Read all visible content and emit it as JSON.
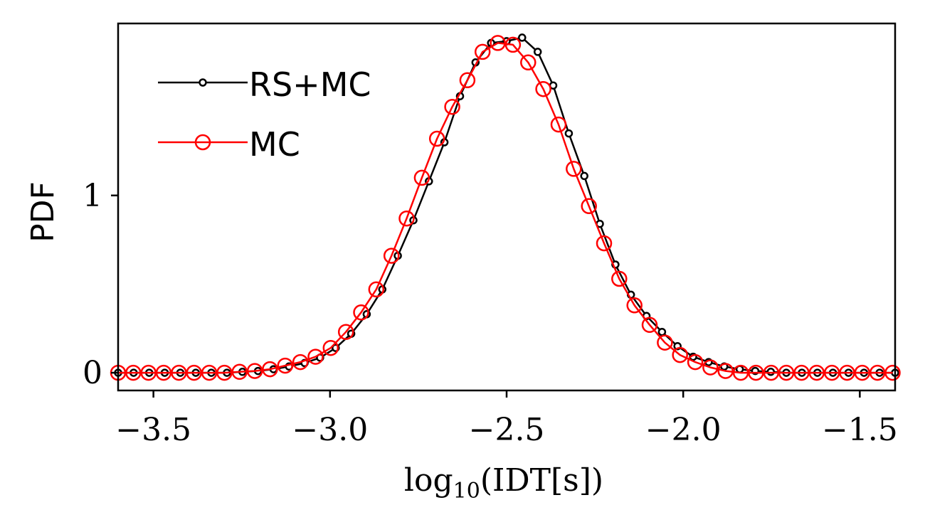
{
  "chart_data": {
    "type": "line",
    "title": "",
    "xlabel": "log₁₀(IDT[s])",
    "ylabel": "PDF",
    "xlim": [
      -3.6,
      -1.4
    ],
    "ylim": [
      -0.1,
      1.97
    ],
    "xticks": [
      -3.5,
      -3.0,
      -2.5,
      -2.0,
      -1.5
    ],
    "xtick_labels": [
      "−3.5",
      "−3.0",
      "−2.5",
      "−2.0",
      "−1.5"
    ],
    "yticks": [
      0,
      1
    ],
    "ytick_labels": [
      "0",
      "1"
    ],
    "grid": false,
    "legend_position": "top-left",
    "series": [
      {
        "name": "RS+MC",
        "color": "#000000",
        "marker": "small-open-circle",
        "x": [
          -3.6,
          -3.556,
          -3.512,
          -3.468,
          -3.424,
          -3.38,
          -3.336,
          -3.292,
          -3.248,
          -3.204,
          -3.16,
          -3.116,
          -3.072,
          -3.028,
          -2.984,
          -2.94,
          -2.896,
          -2.852,
          -2.808,
          -2.764,
          -2.72,
          -2.676,
          -2.632,
          -2.588,
          -2.544,
          -2.5,
          -2.456,
          -2.412,
          -2.368,
          -2.324,
          -2.28,
          -2.236,
          -2.192,
          -2.148,
          -2.104,
          -2.06,
          -2.016,
          -1.972,
          -1.928,
          -1.884,
          -1.84,
          -1.796,
          -1.752,
          -1.708,
          -1.664,
          -1.62,
          -1.576,
          -1.532,
          -1.488,
          -1.444,
          -1.4
        ],
        "y": [
          0.0,
          0.0,
          0.0,
          0.0,
          0.0,
          0.0,
          0.0,
          0.0,
          0.005,
          0.01,
          0.02,
          0.035,
          0.055,
          0.085,
          0.14,
          0.22,
          0.33,
          0.47,
          0.66,
          0.86,
          1.08,
          1.3,
          1.56,
          1.75,
          1.86,
          1.87,
          1.89,
          1.81,
          1.62,
          1.35,
          1.11,
          0.84,
          0.61,
          0.44,
          0.32,
          0.23,
          0.15,
          0.09,
          0.06,
          0.035,
          0.02,
          0.01,
          0.005,
          0.0,
          0.0,
          0.0,
          0.0,
          0.0,
          0.0,
          0.0,
          0.0
        ]
      },
      {
        "name": "MC",
        "color": "#ff0000",
        "marker": "large-open-circle",
        "x": [
          -3.6,
          -3.557,
          -3.514,
          -3.471,
          -3.428,
          -3.385,
          -3.342,
          -3.299,
          -3.256,
          -3.213,
          -3.17,
          -3.127,
          -3.084,
          -3.041,
          -2.998,
          -2.955,
          -2.912,
          -2.869,
          -2.826,
          -2.783,
          -2.74,
          -2.697,
          -2.654,
          -2.611,
          -2.568,
          -2.525,
          -2.482,
          -2.439,
          -2.396,
          -2.353,
          -2.31,
          -2.267,
          -2.224,
          -2.181,
          -2.138,
          -2.095,
          -2.052,
          -2.009,
          -1.966,
          -1.923,
          -1.88,
          -1.837,
          -1.794,
          -1.751,
          -1.708,
          -1.665,
          -1.622,
          -1.579,
          -1.536,
          -1.493,
          -1.45,
          -1.407
        ],
        "y": [
          0.0,
          0.0,
          0.0,
          0.0,
          0.0,
          0.0,
          0.0,
          0.0,
          0.005,
          0.01,
          0.02,
          0.04,
          0.06,
          0.09,
          0.14,
          0.23,
          0.34,
          0.47,
          0.66,
          0.87,
          1.1,
          1.32,
          1.5,
          1.65,
          1.81,
          1.86,
          1.85,
          1.75,
          1.6,
          1.4,
          1.15,
          0.94,
          0.73,
          0.53,
          0.38,
          0.27,
          0.17,
          0.1,
          0.06,
          0.03,
          0.01,
          0.0,
          0.0,
          0.0,
          0.0,
          0.0,
          0.0,
          0.0,
          0.0,
          0.0,
          0.0,
          0.0
        ]
      }
    ]
  }
}
